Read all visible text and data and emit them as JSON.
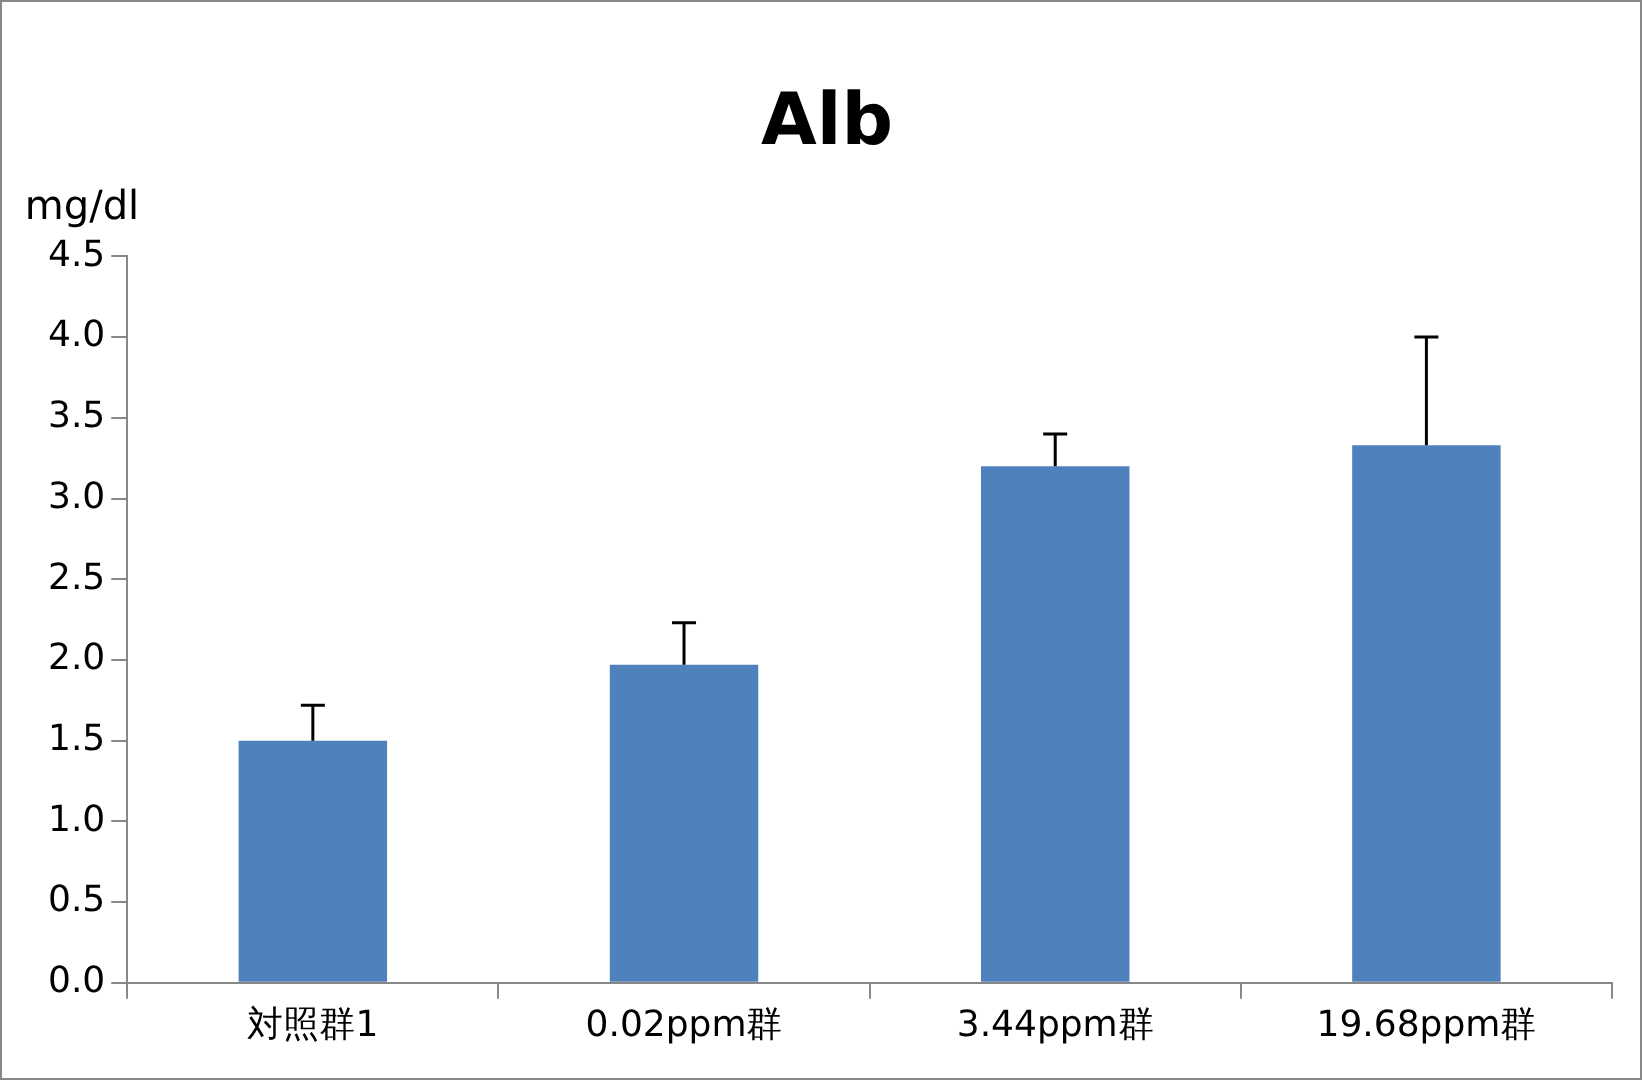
{
  "chart_data": {
    "type": "bar",
    "title": "Alb",
    "ylabel": "mg/dl",
    "categories": [
      "対照群1",
      "0.02ppm群",
      "3.44ppm群",
      "19.68ppm群"
    ],
    "values": [
      1.5,
      1.97,
      3.2,
      3.33
    ],
    "errors": [
      [
        1.5,
        1.72
      ],
      [
        1.97,
        2.23
      ],
      [
        3.2,
        3.4
      ],
      [
        3.33,
        4.0
      ]
    ],
    "color": "#4f81bd",
    "ylim": [
      0,
      4.5
    ],
    "yticks": [
      {
        "value": 0,
        "label": "0.0"
      },
      {
        "value": 0.5,
        "label": "0.5"
      },
      {
        "value": 1,
        "label": "1.0"
      },
      {
        "value": 1.5,
        "label": "1.5"
      },
      {
        "value": 2,
        "label": "2.0"
      },
      {
        "value": 2.5,
        "label": "2.5"
      },
      {
        "value": 3,
        "label": "3.0"
      },
      {
        "value": 3.5,
        "label": "3.5"
      },
      {
        "value": 4,
        "label": "4.0"
      },
      {
        "value": 4.5,
        "label": "4.5"
      }
    ],
    "grid": false,
    "legend": false
  }
}
